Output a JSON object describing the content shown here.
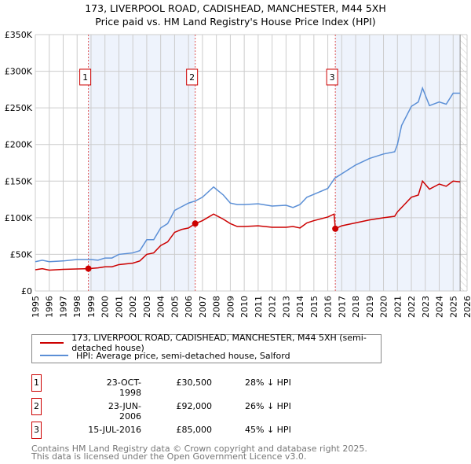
{
  "title_line1": "173, LIVERPOOL ROAD, CADISHEAD, MANCHESTER, M44 5XH",
  "title_line2": "Price paid vs. HM Land Registry's House Price Index (HPI)",
  "chart_data": {
    "type": "line",
    "xlim": [
      1995,
      2026
    ],
    "ylim": [
      0,
      350000
    ],
    "yticks": [
      0,
      50000,
      100000,
      150000,
      200000,
      250000,
      300000,
      350000
    ],
    "ytick_labels": [
      "£0",
      "£50K",
      "£100K",
      "£150K",
      "£200K",
      "£250K",
      "£300K",
      "£350K"
    ],
    "xticks": [
      "1995",
      "1996",
      "1997",
      "1998",
      "1999",
      "2000",
      "2001",
      "2002",
      "2003",
      "2004",
      "2005",
      "2006",
      "2007",
      "2008",
      "2009",
      "2010",
      "2011",
      "2012",
      "2013",
      "2014",
      "2015",
      "2016",
      "2017",
      "2018",
      "2019",
      "2020",
      "2021",
      "2022",
      "2023",
      "2024",
      "2025",
      "2026"
    ],
    "grid": true,
    "shaded_ranges": [
      [
        1998.81,
        2006.48
      ],
      [
        2016.54,
        2025.5
      ]
    ],
    "hatched_from": 2025.5,
    "series": [
      {
        "name": "173, LIVERPOOL ROAD, CADISHEAD, MANCHESTER, M44 5XH (semi-detached house)",
        "color": "#cc0000",
        "x": [
          1995,
          1995.5,
          1996,
          1997,
          1998,
          1998.81,
          1999.5,
          2000,
          2000.5,
          2001,
          2002,
          2002.5,
          2003,
          2003.5,
          2004,
          2004.5,
          2005,
          2005.5,
          2006,
          2006.48,
          2007,
          2007.8,
          2008.5,
          2009,
          2009.5,
          2010,
          2011,
          2012,
          2013,
          2013.5,
          2014,
          2014.5,
          2015,
          2016,
          2016.45,
          2016.54,
          2017,
          2018,
          2019,
          2020,
          2020.8,
          2021,
          2021.5,
          2022,
          2022.5,
          2022.8,
          2023.3,
          2024,
          2024.5,
          2025,
          2025.5
        ],
        "y": [
          29000,
          30500,
          28500,
          29500,
          30000,
          30500,
          31500,
          33000,
          33000,
          36000,
          38000,
          41000,
          50000,
          52000,
          62000,
          67000,
          80000,
          84000,
          86000,
          92000,
          96000,
          105000,
          98000,
          92000,
          88000,
          88000,
          89000,
          87000,
          87000,
          88000,
          86000,
          93000,
          96000,
          101000,
          105000,
          85000,
          89000,
          93000,
          97000,
          100000,
          102000,
          108000,
          118000,
          128000,
          131000,
          150000,
          139000,
          146000,
          143000,
          150000,
          149000
        ]
      },
      {
        "name": "HPI: Average price, semi-detached house, Salford",
        "color": "#5b8fd6",
        "x": [
          1995,
          1995.5,
          1996,
          1997,
          1998,
          1999,
          1999.5,
          2000,
          2000.5,
          2001,
          2002,
          2002.5,
          2003,
          2003.5,
          2004,
          2004.5,
          2005,
          2005.5,
          2006,
          2006.5,
          2007,
          2007.8,
          2008.5,
          2009,
          2009.5,
          2010,
          2011,
          2012,
          2013,
          2013.5,
          2014,
          2014.5,
          2015,
          2016,
          2016.5,
          2017,
          2018,
          2019,
          2020,
          2020.8,
          2021,
          2021.3,
          2022,
          2022.5,
          2022.8,
          2023.3,
          2024,
          2024.5,
          2025,
          2025.5
        ],
        "y": [
          40000,
          42000,
          40000,
          41000,
          43000,
          43000,
          42000,
          45000,
          45000,
          50000,
          52000,
          55000,
          70000,
          70000,
          86000,
          92000,
          110000,
          115000,
          120000,
          123000,
          128000,
          142000,
          131000,
          120000,
          118000,
          118000,
          119000,
          116000,
          117000,
          114000,
          118000,
          128000,
          132000,
          140000,
          154000,
          160000,
          172000,
          181000,
          187000,
          190000,
          200000,
          226000,
          252000,
          258000,
          277000,
          253000,
          258000,
          255000,
          270000,
          270000
        ]
      }
    ],
    "markers": [
      {
        "label": "1",
        "x": 1998.81,
        "y": 30500
      },
      {
        "label": "2",
        "x": 2006.48,
        "y": 92000
      },
      {
        "label": "3",
        "x": 2016.54,
        "y": 85000
      }
    ]
  },
  "legend": {
    "property": "173, LIVERPOOL ROAD, CADISHEAD, MANCHESTER, M44 5XH (semi-detached house)",
    "hpi": "HPI: Average price, semi-detached house, Salford"
  },
  "transactions": [
    {
      "num": "1",
      "date": "23-OCT-1998",
      "price": "£30,500",
      "pct": "28% ↓ HPI"
    },
    {
      "num": "2",
      "date": "23-JUN-2006",
      "price": "£92,000",
      "pct": "26% ↓ HPI"
    },
    {
      "num": "3",
      "date": "15-JUL-2016",
      "price": "£85,000",
      "pct": "45% ↓ HPI"
    }
  ],
  "footer": {
    "line1": "Contains HM Land Registry data © Crown copyright and database right 2025.",
    "line2": "This data is licensed under the Open Government Licence v3.0."
  }
}
